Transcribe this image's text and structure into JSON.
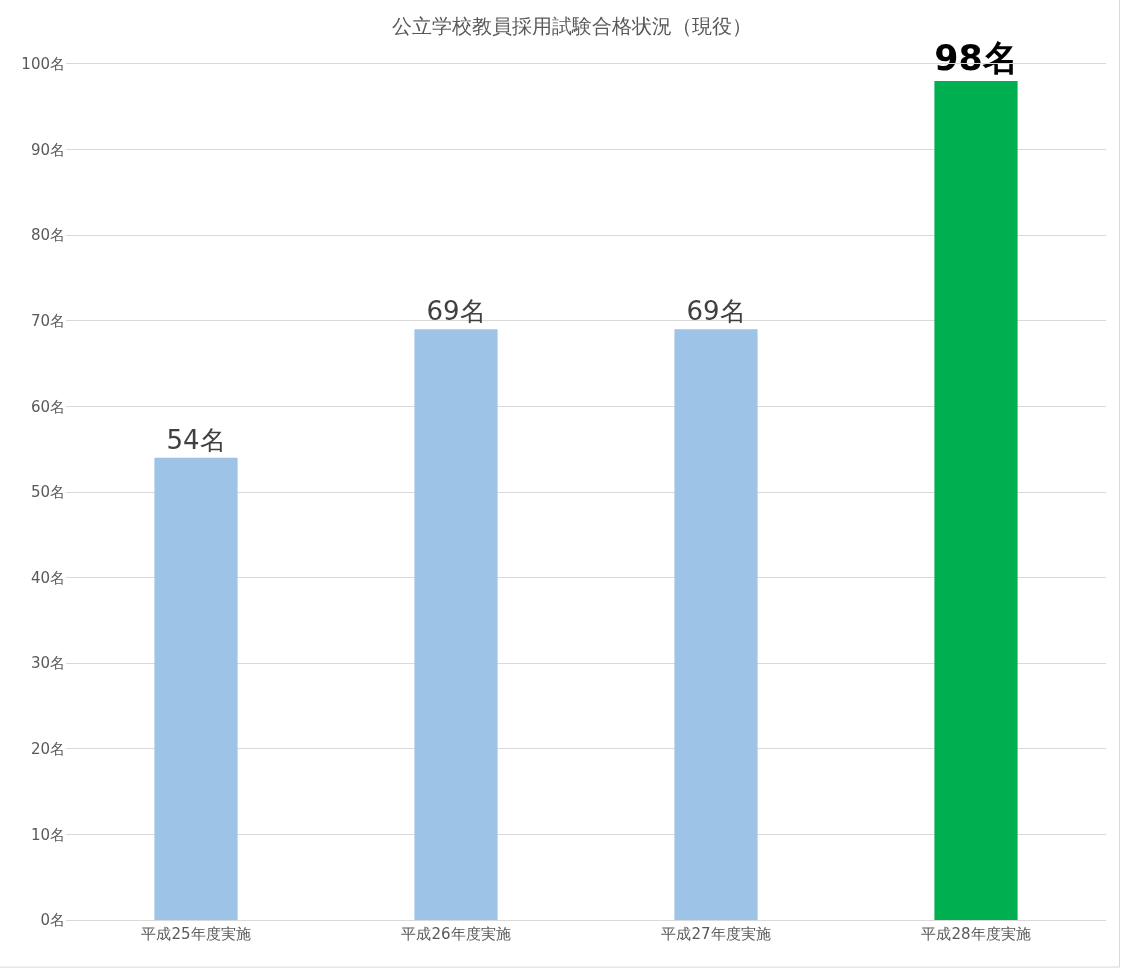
{
  "chart_data": {
    "type": "bar",
    "title": "公立学校教員採用試験合格状況（現役）",
    "categories": [
      "平成25年度実施",
      "平成26年度実施",
      "平成27年度実施",
      "平成28年度実施"
    ],
    "values": [
      54,
      69,
      69,
      98
    ],
    "colors": [
      "#9dc3e6",
      "#9dc3e6",
      "#9dc3e6",
      "#00b050"
    ],
    "value_labels": [
      "54名",
      "69名",
      "69名",
      "98名"
    ],
    "ylim": [
      0,
      100
    ],
    "yticks": [
      {
        "value": 0,
        "label": "0名"
      },
      {
        "value": 10,
        "label": "10名"
      },
      {
        "value": 20,
        "label": "20名"
      },
      {
        "value": 30,
        "label": "30名"
      },
      {
        "value": 40,
        "label": "40名"
      },
      {
        "value": 50,
        "label": "50名"
      },
      {
        "value": 60,
        "label": "60名"
      },
      {
        "value": 70,
        "label": "70名"
      },
      {
        "value": 80,
        "label": "80名"
      },
      {
        "value": 90,
        "label": "90名"
      },
      {
        "value": 100,
        "label": "100名"
      }
    ],
    "grid": "y"
  }
}
